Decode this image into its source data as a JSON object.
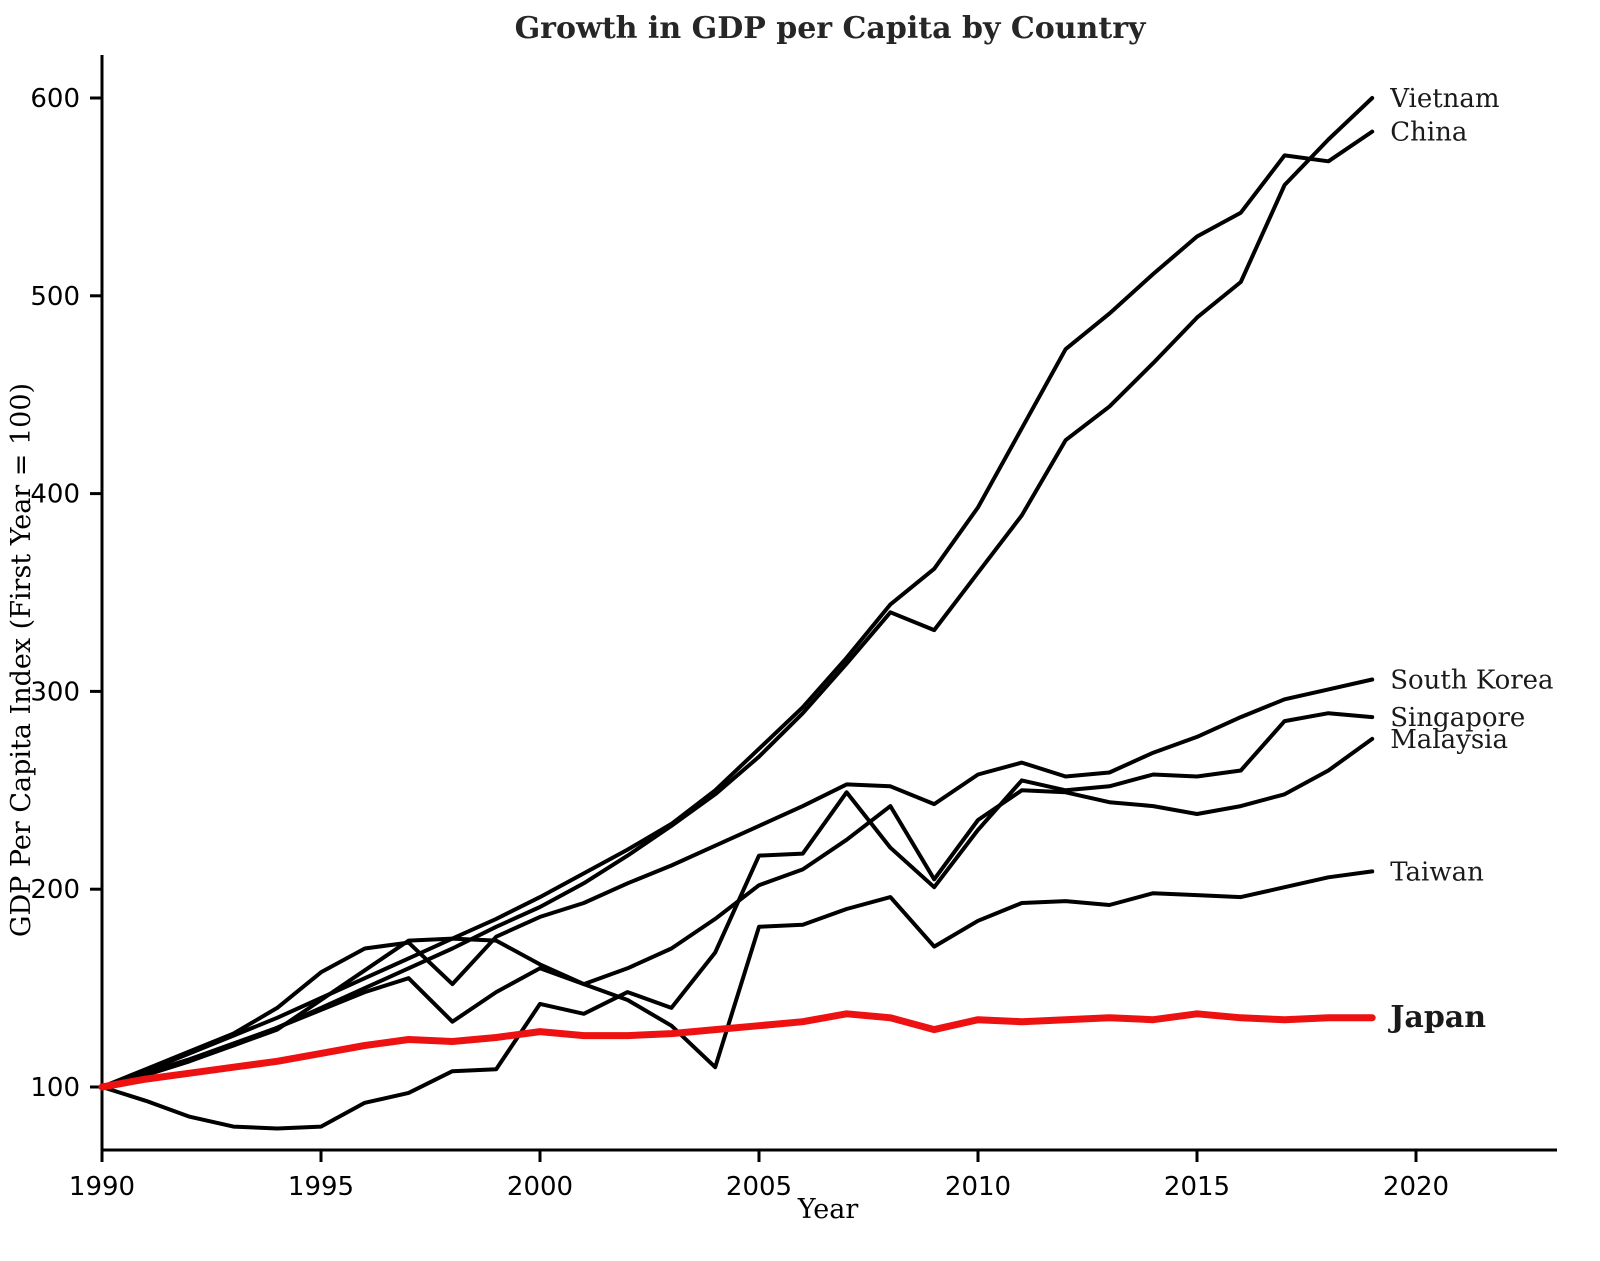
{
  "chart_data": {
    "type": "line",
    "title": "Growth in GDP per Capita by Country",
    "xlabel": "Year",
    "ylabel": "GDP Per Capita Index (First Year = 100)",
    "x_ticks": [
      1990,
      1995,
      2000,
      2005,
      2010,
      2015,
      2020
    ],
    "y_ticks": [
      100,
      200,
      300,
      400,
      500,
      600
    ],
    "xlim": [
      1990,
      2023.2
    ],
    "ylim": [
      68,
      622
    ],
    "grid": false,
    "legend_position": "line-end-labels-right",
    "x": [
      1990,
      1991,
      1992,
      1993,
      1994,
      1995,
      1996,
      1997,
      1998,
      1999,
      2000,
      2001,
      2002,
      2003,
      2004,
      2005,
      2006,
      2007,
      2008,
      2009,
      2010,
      2011,
      2012,
      2013,
      2014,
      2015,
      2016,
      2017,
      2018,
      2019
    ],
    "colors": {
      "default_line": "#000000",
      "highlight_line": "#ee1111"
    },
    "series": [
      {
        "name": "Vietnam",
        "color": "#000000",
        "width": 4,
        "highlight": false,
        "values": [
          100,
          106,
          113,
          121,
          130,
          140,
          150,
          160,
          170,
          181,
          191,
          203,
          217,
          232,
          248,
          267,
          289,
          314,
          340,
          331,
          360,
          389,
          427,
          444,
          466,
          489,
          507,
          556,
          579,
          600
        ]
      },
      {
        "name": "China",
        "color": "#000000",
        "width": 4,
        "highlight": false,
        "values": [
          100,
          108,
          117,
          126,
          135,
          145,
          155,
          165,
          175,
          185,
          196,
          208,
          220,
          233,
          250,
          271,
          292,
          317,
          344,
          362,
          393,
          433,
          473,
          491,
          511,
          530,
          542,
          571,
          568,
          583
        ]
      },
      {
        "name": "South Korea",
        "color": "#000000",
        "width": 4,
        "highlight": false,
        "values": [
          100,
          109,
          118,
          127,
          140,
          158,
          170,
          173,
          152,
          176,
          186,
          193,
          203,
          212,
          222,
          232,
          242,
          253,
          252,
          243,
          258,
          264,
          257,
          259,
          269,
          277,
          287,
          296,
          301,
          306
        ]
      },
      {
        "name": "Singapore",
        "color": "#000000",
        "width": 4,
        "highlight": false,
        "values": [
          100,
          93,
          85,
          80,
          79,
          80,
          92,
          97,
          108,
          109,
          142,
          137,
          148,
          140,
          168,
          217,
          218,
          249,
          221,
          201,
          230,
          255,
          250,
          252,
          258,
          257,
          260,
          285,
          289,
          287
        ]
      },
      {
        "name": "Malaysia",
        "color": "#000000",
        "width": 4,
        "highlight": false,
        "values": [
          100,
          107,
          114,
          122,
          130,
          139,
          148,
          155,
          133,
          148,
          160,
          152,
          160,
          170,
          185,
          202,
          210,
          225,
          242,
          205,
          235,
          250,
          249,
          244,
          242,
          238,
          242,
          248,
          260,
          276
        ]
      },
      {
        "name": "Taiwan",
        "color": "#000000",
        "width": 4,
        "highlight": false,
        "values": [
          100,
          107,
          114,
          121,
          129,
          144,
          159,
          174,
          175,
          174,
          162,
          152,
          144,
          131,
          110,
          181,
          182,
          190,
          196,
          171,
          184,
          193,
          194,
          192,
          198,
          197,
          196,
          201,
          206,
          209
        ]
      },
      {
        "name": "Japan",
        "color": "#ee1111",
        "width": 7,
        "highlight": true,
        "values": [
          100,
          104,
          107,
          110,
          113,
          117,
          121,
          124,
          123,
          125,
          128,
          126,
          126,
          127,
          129,
          131,
          133,
          137,
          135,
          129,
          134,
          133,
          134,
          135,
          134,
          137,
          135,
          134,
          135,
          135
        ]
      }
    ]
  }
}
